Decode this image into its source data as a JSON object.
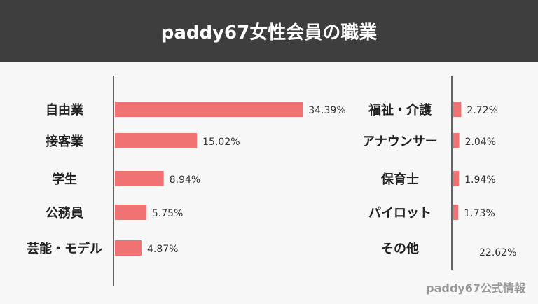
{
  "header": {
    "title": "paddy67女性会員の職業"
  },
  "chart_data": [
    {
      "type": "bar",
      "orientation": "horizontal",
      "categories": [
        "自由業",
        "接客業",
        "学生",
        "公務員",
        "芸能・モデル"
      ],
      "values": [
        34.39,
        15.02,
        8.94,
        5.75,
        4.87
      ],
      "value_labels": [
        "34.39%",
        "15.02%",
        "8.94%",
        "5.75%",
        "4.87%"
      ],
      "bar_color": "#f07272"
    },
    {
      "type": "bar",
      "orientation": "horizontal",
      "categories": [
        "福祉・介護",
        "アナウンサー",
        "保育士",
        "パイロット",
        "その他"
      ],
      "values": [
        2.72,
        2.04,
        1.94,
        1.73,
        22.62
      ],
      "value_labels": [
        "2.72%",
        "2.04%",
        "1.94%",
        "1.73%",
        "22.62%"
      ],
      "bar_color": "#f07272"
    }
  ],
  "footer": {
    "credit": "paddy67公式情報"
  }
}
